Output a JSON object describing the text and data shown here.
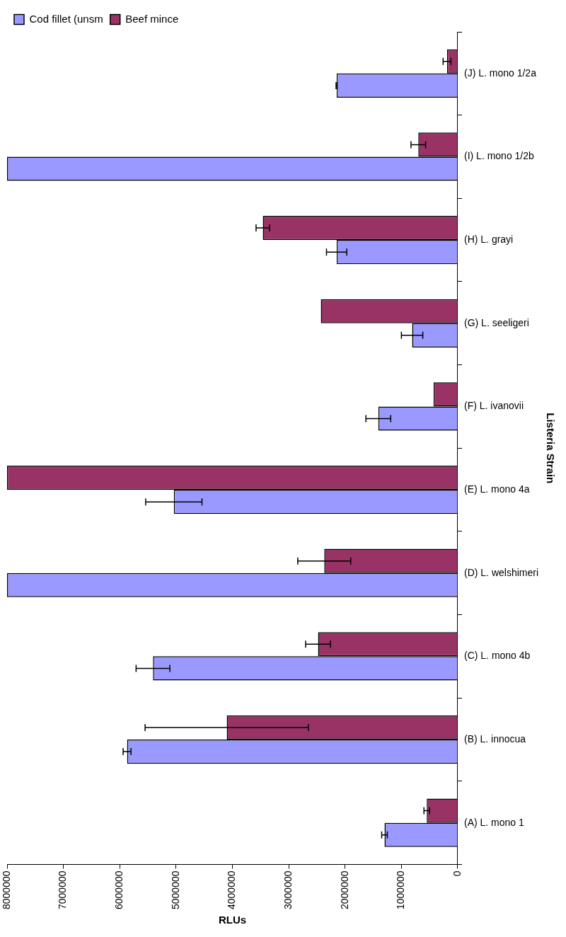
{
  "chart_data": {
    "type": "bar",
    "orientation": "horizontal",
    "xlabel": "RLUs",
    "ylabel": "Listeria Strain",
    "categories": [
      "(J) L. mono 1/2a",
      "(I) L. mono 1/2b",
      "(H) L. grayi",
      "(G) L. seeligeri",
      "(F) L. ivanovii",
      "(E) L. mono 4a",
      "(D) L. welshimeri",
      "(C) L. mono 4b",
      "(B) L. innocua",
      "(A) L. mono 1"
    ],
    "series": [
      {
        "name": "Beef mince",
        "color": "#993366",
        "values": [
          190000,
          700000,
          3460000,
          2430000,
          430000,
          8000000,
          2370000,
          2480000,
          4100000,
          550000
        ],
        "errors": [
          70000,
          130000,
          120000,
          null,
          null,
          null,
          470000,
          220000,
          1450000,
          50000
        ]
      },
      {
        "name": "Cod fillet (unsm",
        "color": "#9999ff",
        "values": [
          2150000,
          8000000,
          2150000,
          810000,
          1410000,
          5040000,
          8000000,
          5410000,
          5870000,
          1300000
        ],
        "errors": [
          10000,
          null,
          180000,
          190000,
          220000,
          500000,
          null,
          300000,
          70000,
          50000
        ]
      }
    ],
    "xlim": [
      8000000,
      0
    ],
    "xticks": [
      8000000,
      7000000,
      6000000,
      5000000,
      4000000,
      3000000,
      2000000,
      1000000,
      0
    ],
    "grid": false,
    "legend": "top left"
  }
}
